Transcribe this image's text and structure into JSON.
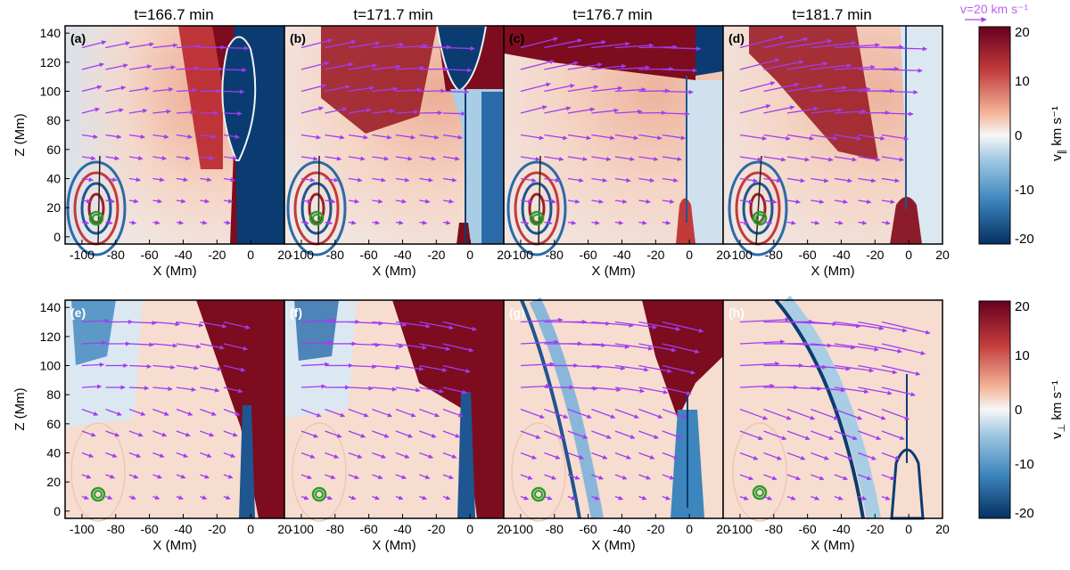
{
  "titles": [
    "t=166.7 min",
    "t=171.7 min",
    "t=176.7 min",
    "t=181.7 min"
  ],
  "panel_labels": [
    "(a)",
    "(b)",
    "(c)",
    "(d)",
    "(e)",
    "(f)",
    "(g)",
    "(h)"
  ],
  "axis": {
    "xlabel": "X (Mm)",
    "ylabel": "Z (Mm)",
    "xticks": [
      "-100",
      "-80",
      "-60",
      "-40",
      "-20",
      "0",
      "20"
    ],
    "yticks": [
      "0",
      "20",
      "40",
      "60",
      "80",
      "100",
      "120",
      "140"
    ]
  },
  "reference_vector": "v=20 km s⁻¹",
  "colorbar_top": {
    "label_main": "v",
    "label_sub": "∥",
    "label_unit": "km s⁻¹",
    "ticks": [
      "20",
      "10",
      "0",
      "-10",
      "-20"
    ],
    "range": [
      -20,
      20
    ]
  },
  "colorbar_bottom": {
    "label_main": "v",
    "label_sub": "⊥",
    "label_unit": "km s⁻¹",
    "ticks": [
      "20",
      "10",
      "0",
      "-10",
      "-20"
    ],
    "range": [
      -20,
      20
    ]
  },
  "colors": {
    "vector": "#a23cf0",
    "contour": "#2e9a2e",
    "map_positive": "#7d0c1e",
    "map_negative": "#0a3c72"
  }
}
